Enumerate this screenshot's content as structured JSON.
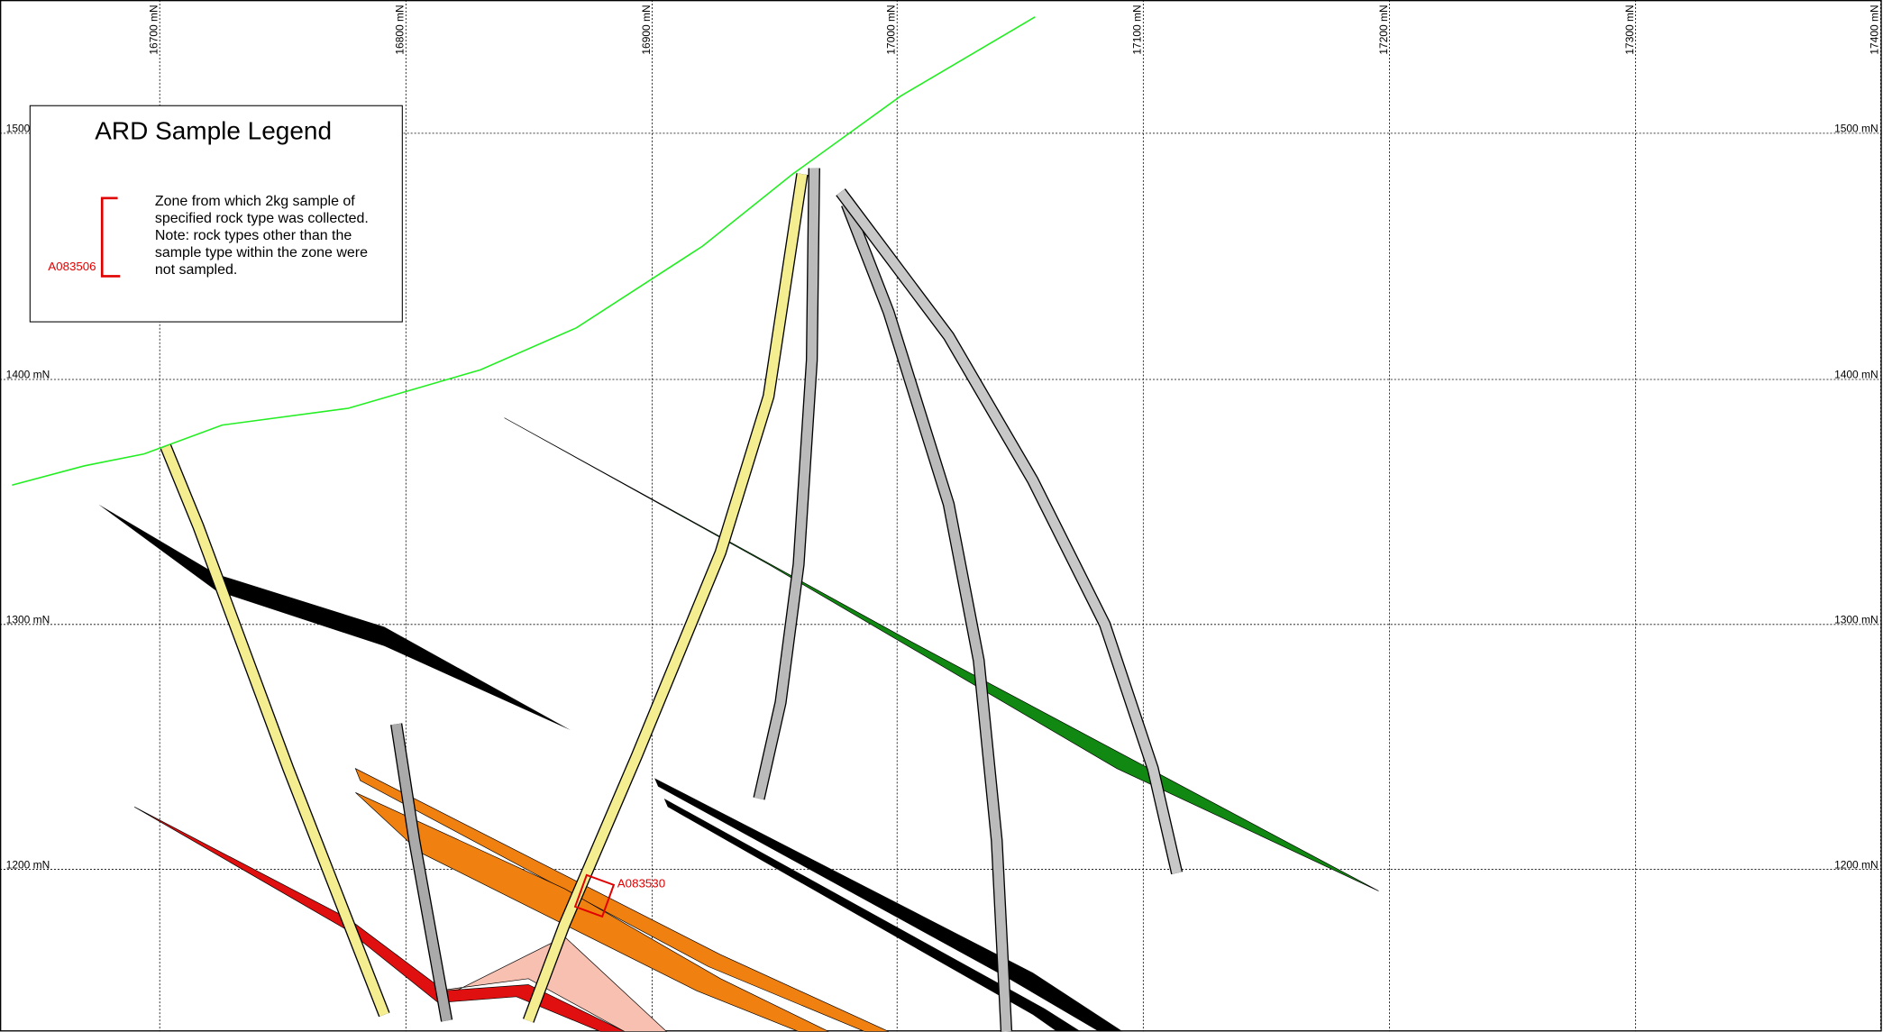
{
  "grid": {
    "eastings": [
      "16700 mN",
      "16800 mN",
      "16900 mN",
      "17000 mN",
      "17100 mN",
      "17200 mN",
      "17300 mN",
      "17400 mN"
    ],
    "elevations": [
      "1500 mN",
      "1400 mN",
      "1300 mN",
      "1200 mN"
    ]
  },
  "legend": {
    "title": "ARD Sample Legend",
    "sample_label": "A083506",
    "lines": [
      "Zone from which 2kg sample of",
      "specified rock type was collected.",
      "Note: rock types other than the",
      "sample type within the zone were",
      "not sampled."
    ]
  },
  "samples": [
    {
      "label": "A083530"
    }
  ]
}
